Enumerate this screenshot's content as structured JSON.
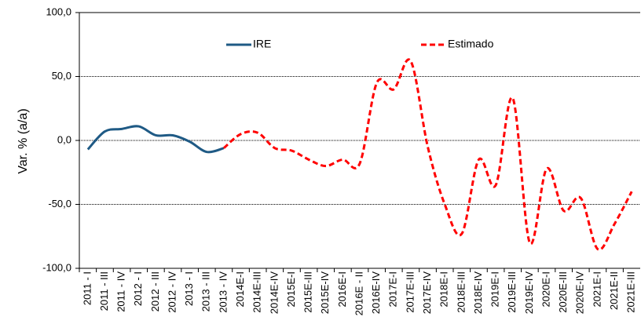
{
  "chart_data": {
    "type": "line",
    "y_label": "Var. % (a/a)",
    "categories": [
      "2011 - I",
      "2011 - III",
      "2011 - IV",
      "2012 - I",
      "2012 - III",
      "2012 - IV",
      "2013 - I",
      "2013 - III",
      "2013 - IV",
      "2014E-I",
      "2014E-III",
      "2014E-IV",
      "2015E-I",
      "2015E-III",
      "2015E-IV",
      "2016E-I",
      "2016E - II",
      "2016E-IV",
      "2017E-I",
      "2017E-III",
      "2017E-IV",
      "2018E-I",
      "2018E-III",
      "2018E-IV",
      "2019E-I",
      "2019E-III",
      "2019E-IV",
      "2020E-I",
      "2020E-III",
      "2020E-IV",
      "2021E-I",
      "2021E-II",
      "2021E-III"
    ],
    "series": [
      {
        "name": "IRE",
        "color": "#1f5a85",
        "dash": false,
        "values": [
          -7,
          7,
          9,
          11,
          4,
          4,
          -1,
          -9,
          -6,
          null,
          null,
          null,
          null,
          null,
          null,
          null,
          null,
          null,
          null,
          null,
          null,
          null,
          null,
          null,
          null,
          null,
          null,
          null,
          null,
          null,
          null,
          null,
          null
        ]
      },
      {
        "name": "Estimado",
        "color": "#ff0000",
        "dash": true,
        "values": [
          null,
          null,
          null,
          null,
          null,
          null,
          null,
          null,
          -6,
          5,
          6,
          -6,
          -8,
          -15,
          -20,
          -15,
          -18,
          45,
          40,
          62,
          -5,
          -50,
          -73,
          -15,
          -35,
          33,
          -80,
          -22,
          -55,
          -45,
          -85,
          -65,
          -40
        ]
      }
    ],
    "ylim": [
      -100,
      100
    ],
    "yticks": [
      {
        "value": -100,
        "label": "-100,0"
      },
      {
        "value": -50,
        "label": "-50,0"
      },
      {
        "value": 0,
        "label": "0,0"
      },
      {
        "value": 50,
        "label": "50,0"
      },
      {
        "value": 100,
        "label": "100,0"
      }
    ],
    "grid": true
  }
}
